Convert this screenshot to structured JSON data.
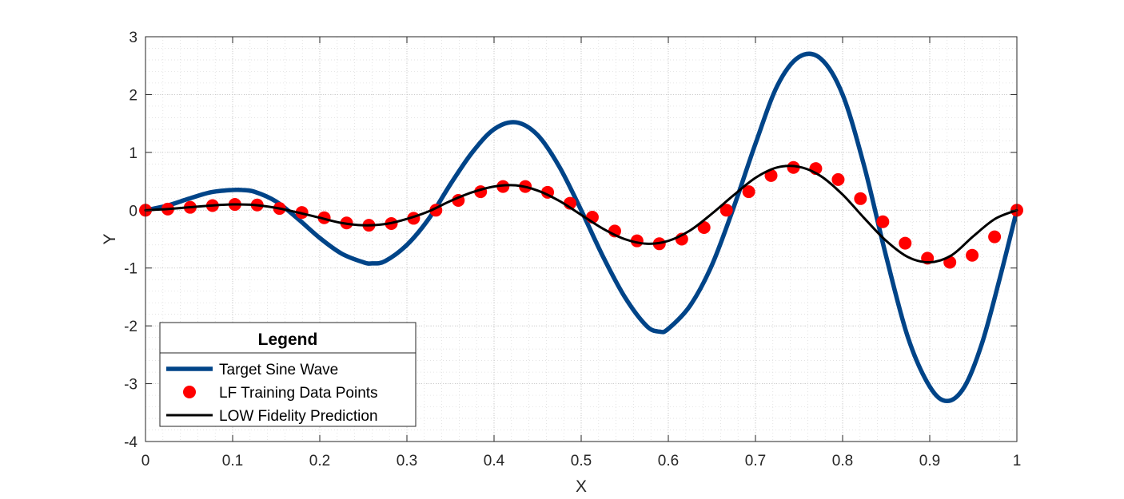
{
  "chart_data": {
    "type": "line",
    "xlabel": "X",
    "ylabel": "Y",
    "xlim": [
      0,
      1
    ],
    "ylim": [
      -4,
      3
    ],
    "xticks": [
      0,
      0.1,
      0.2,
      0.3,
      0.4,
      0.5,
      0.6,
      0.7,
      0.8,
      0.9,
      1
    ],
    "xtick_labels": [
      "0",
      "0.1",
      "0.2",
      "0.3",
      "0.4",
      "0.5",
      "0.6",
      "0.7",
      "0.8",
      "0.9",
      "1"
    ],
    "yticks": [
      3,
      2,
      1,
      0,
      -1,
      -2,
      -3,
      -4
    ],
    "ytick_labels": [
      "3",
      "2",
      "1",
      "0",
      "-1",
      "-2",
      "-3",
      "-4"
    ],
    "grid": "on, major and minor dotted",
    "legend": {
      "title": "Legend",
      "location": "bottom-left",
      "entries": [
        "Target Sine Wave",
        "LF Training Data Points",
        "LOW Fidelity Prediction"
      ]
    },
    "series": [
      {
        "name": "Target Sine Wave",
        "style": "line",
        "color": "#004488",
        "x": [
          0,
          0.025,
          0.05,
          0.075,
          0.1,
          0.11,
          0.125,
          0.15,
          0.175,
          0.2,
          0.225,
          0.25,
          0.26,
          0.275,
          0.3,
          0.325,
          0.35,
          0.375,
          0.4,
          0.425,
          0.45,
          0.475,
          0.5,
          0.525,
          0.55,
          0.575,
          0.59,
          0.6,
          0.625,
          0.65,
          0.675,
          0.7,
          0.725,
          0.75,
          0.775,
          0.8,
          0.825,
          0.85,
          0.875,
          0.9,
          0.92,
          0.94,
          0.96,
          0.98,
          1
        ],
        "y": [
          0,
          0.08,
          0.2,
          0.31,
          0.35,
          0.35,
          0.32,
          0.15,
          -0.15,
          -0.48,
          -0.75,
          -0.9,
          -0.92,
          -0.88,
          -0.6,
          -0.15,
          0.45,
          1.0,
          1.4,
          1.52,
          1.3,
          0.75,
          0.0,
          -0.8,
          -1.5,
          -2.0,
          -2.1,
          -2.05,
          -1.65,
          -0.95,
          0.05,
          1.15,
          2.15,
          2.65,
          2.62,
          2.0,
          0.75,
          -0.8,
          -2.2,
          -3.05,
          -3.3,
          -3.05,
          -2.3,
          -1.2,
          0
        ]
      },
      {
        "name": "LF Training Data Points",
        "style": "markers",
        "color": "#ff0000",
        "x": [
          0,
          0.0256,
          0.0513,
          0.0769,
          0.1026,
          0.1282,
          0.1538,
          0.1795,
          0.2051,
          0.2308,
          0.2564,
          0.2821,
          0.3077,
          0.3333,
          0.359,
          0.3846,
          0.4103,
          0.4359,
          0.4615,
          0.4872,
          0.5128,
          0.5385,
          0.5641,
          0.5897,
          0.6154,
          0.641,
          0.6667,
          0.6923,
          0.7179,
          0.7436,
          0.7692,
          0.7949,
          0.8205,
          0.8462,
          0.8718,
          0.8974,
          0.9231,
          0.9487,
          0.9744,
          1
        ],
        "y": [
          0,
          0.02,
          0.05,
          0.08,
          0.1,
          0.09,
          0.03,
          -0.04,
          -0.13,
          -0.22,
          -0.26,
          -0.23,
          -0.14,
          0.0,
          0.17,
          0.32,
          0.41,
          0.41,
          0.31,
          0.12,
          -0.12,
          -0.36,
          -0.53,
          -0.58,
          -0.5,
          -0.3,
          0.0,
          0.32,
          0.6,
          0.74,
          0.72,
          0.53,
          0.2,
          -0.2,
          -0.57,
          -0.83,
          -0.9,
          -0.78,
          -0.46,
          0
        ]
      },
      {
        "name": "LOW Fidelity Prediction",
        "style": "line",
        "color": "#000000",
        "x": [
          0,
          0.025,
          0.05,
          0.075,
          0.1,
          0.125,
          0.15,
          0.175,
          0.2,
          0.225,
          0.25,
          0.275,
          0.3,
          0.325,
          0.35,
          0.375,
          0.4,
          0.425,
          0.45,
          0.475,
          0.5,
          0.525,
          0.55,
          0.575,
          0.6,
          0.625,
          0.65,
          0.675,
          0.7,
          0.725,
          0.75,
          0.775,
          0.8,
          0.825,
          0.85,
          0.875,
          0.9,
          0.925,
          0.95,
          0.975,
          1
        ],
        "y": [
          0,
          0.02,
          0.05,
          0.08,
          0.1,
          0.09,
          0.04,
          -0.04,
          -0.13,
          -0.22,
          -0.26,
          -0.24,
          -0.15,
          -0.02,
          0.16,
          0.31,
          0.41,
          0.43,
          0.34,
          0.16,
          -0.08,
          -0.32,
          -0.5,
          -0.58,
          -0.53,
          -0.35,
          -0.06,
          0.26,
          0.56,
          0.74,
          0.75,
          0.59,
          0.27,
          -0.14,
          -0.53,
          -0.81,
          -0.9,
          -0.78,
          -0.45,
          -0.15,
          0
        ]
      }
    ]
  }
}
